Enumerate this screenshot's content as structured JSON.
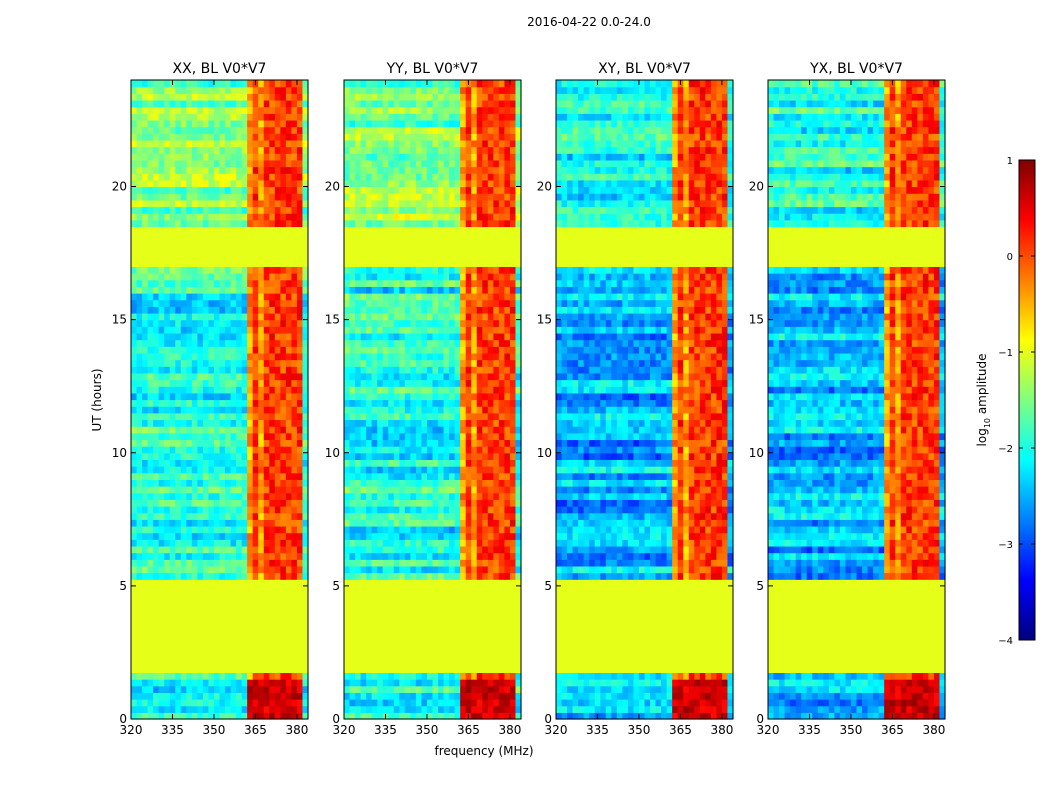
{
  "figure": {
    "suptitle": "2016-04-22 0.0-24.0",
    "xlabel": "frequency (MHz)",
    "ylabel": "UT (hours)"
  },
  "colorbar": {
    "label_prefix": "log",
    "label_sub": "10",
    "label_suffix": " amplitude",
    "ticks": [
      {
        "value": 1,
        "label": "1"
      },
      {
        "value": 0,
        "label": "0"
      },
      {
        "value": -1,
        "label": "−1"
      },
      {
        "value": -2,
        "label": "−2"
      },
      {
        "value": -3,
        "label": "−3"
      },
      {
        "value": -4,
        "label": "−4"
      }
    ],
    "range": [
      -4,
      1
    ],
    "colors": [
      "#00007f",
      "#0000ff",
      "#007fff",
      "#00ffff",
      "#7fff7f",
      "#ffff00",
      "#ff7f00",
      "#ff0000",
      "#7f0000"
    ]
  },
  "chart_data": {
    "type": "heatmap",
    "panels": [
      {
        "title": "XX, BL V0*V7",
        "id": "xx"
      },
      {
        "title": "YY, BL V0*V7",
        "id": "yy"
      },
      {
        "title": "XY, BL V0*V7",
        "id": "xy"
      },
      {
        "title": "YX, BL V0*V7",
        "id": "yx"
      }
    ],
    "x_range_mhz": [
      320,
      384
    ],
    "x_ticks": [
      {
        "value": 320,
        "label": "320"
      },
      {
        "value": 335,
        "label": "335"
      },
      {
        "value": 350,
        "label": "350"
      },
      {
        "value": 365,
        "label": "365"
      },
      {
        "value": 380,
        "label": "380"
      }
    ],
    "y_range_hours": [
      0,
      24
    ],
    "y_ticks": [
      {
        "value": 0,
        "label": "0"
      },
      {
        "value": 5,
        "label": "5"
      },
      {
        "value": 10,
        "label": "10"
      },
      {
        "value": 15,
        "label": "15"
      },
      {
        "value": 20,
        "label": "20"
      }
    ],
    "flagged_intervals_hours": [
      [
        1.75,
        5.3
      ],
      [
        17.1,
        18.6
      ]
    ],
    "flag_fill_log10": -1.0,
    "strong_rfi_band_mhz": [
      363,
      381
    ],
    "rfi_channels_mhz": [
      364.5,
      369,
      372,
      374.5,
      378,
      380.5
    ],
    "background_log10": {
      "xx": -2.0,
      "yy": -2.0,
      "xy": -2.5,
      "yx": -2.5
    }
  }
}
